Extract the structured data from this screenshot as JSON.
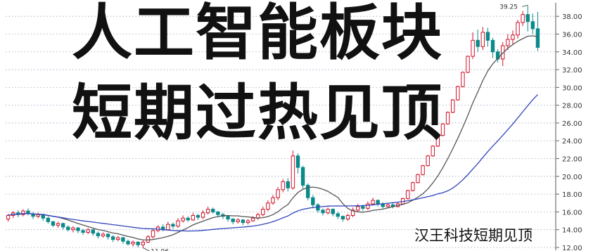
{
  "headline": {
    "line1": "人工智能板块",
    "line2": "短期过热见顶"
  },
  "caption": "汉王科技短期见顶",
  "colors": {
    "up": "#d0122a",
    "down": "#0a8a8a",
    "ma_short": "#555555",
    "ma_long": "#3344bb",
    "grid": "#9aa6c4"
  },
  "chart_data": {
    "type": "candlestick",
    "ylim": [
      12,
      39.2
    ],
    "yticks": [
      "12.00",
      "14.00",
      "16.00",
      "18.00",
      "20.00",
      "22.00",
      "24.00",
      "26.00",
      "28.00",
      "30.00",
      "32.00",
      "34.00",
      "36.00",
      "38.00"
    ],
    "annotations": {
      "low": "11.96",
      "high": "39.25"
    },
    "candles": [
      [
        15.2,
        15.6,
        14.9,
        15.8
      ],
      [
        15.6,
        15.9,
        15.3,
        16.1
      ],
      [
        15.9,
        15.7,
        15.4,
        16.2
      ],
      [
        15.7,
        16.1,
        15.5,
        16.3
      ],
      [
        16.1,
        15.8,
        15.6,
        16.4
      ],
      [
        15.8,
        15.5,
        15.2,
        16.0
      ],
      [
        15.5,
        15.7,
        15.3,
        15.9
      ],
      [
        15.7,
        15.3,
        15.0,
        15.8
      ],
      [
        15.3,
        14.9,
        14.7,
        15.5
      ],
      [
        14.9,
        14.5,
        14.3,
        15.0
      ],
      [
        14.5,
        14.7,
        14.2,
        14.9
      ],
      [
        14.7,
        14.3,
        14.0,
        14.8
      ],
      [
        14.3,
        14.0,
        13.8,
        14.5
      ],
      [
        14.0,
        14.2,
        13.7,
        14.4
      ],
      [
        14.2,
        13.9,
        13.6,
        14.3
      ],
      [
        13.9,
        13.7,
        13.4,
        14.1
      ],
      [
        13.7,
        14.0,
        13.5,
        14.2
      ],
      [
        14.0,
        13.6,
        13.3,
        14.1
      ],
      [
        13.6,
        13.3,
        13.0,
        13.8
      ],
      [
        13.3,
        13.5,
        13.1,
        13.7
      ],
      [
        13.5,
        13.2,
        12.9,
        13.6
      ],
      [
        13.2,
        12.9,
        12.6,
        13.4
      ],
      [
        12.9,
        13.1,
        12.7,
        13.3
      ],
      [
        13.1,
        12.7,
        12.4,
        13.2
      ],
      [
        12.7,
        12.4,
        12.2,
        12.9
      ],
      [
        12.4,
        12.6,
        12.1,
        12.8
      ],
      [
        12.6,
        12.3,
        12.0,
        12.7
      ],
      [
        12.3,
        12.6,
        11.96,
        12.8
      ],
      [
        12.6,
        13.2,
        12.5,
        13.4
      ],
      [
        13.2,
        13.9,
        13.0,
        14.1
      ],
      [
        13.9,
        14.3,
        13.7,
        14.5
      ],
      [
        14.3,
        14.0,
        13.8,
        14.6
      ],
      [
        14.0,
        14.6,
        13.9,
        14.9
      ],
      [
        14.6,
        14.4,
        14.1,
        14.8
      ],
      [
        14.4,
        15.0,
        14.2,
        15.3
      ],
      [
        15.0,
        15.3,
        14.8,
        15.6
      ],
      [
        15.3,
        15.1,
        14.9,
        15.5
      ],
      [
        15.1,
        15.6,
        15.0,
        15.9
      ],
      [
        15.6,
        15.4,
        15.1,
        15.8
      ],
      [
        15.4,
        15.9,
        15.2,
        16.2
      ],
      [
        15.9,
        16.3,
        15.7,
        16.6
      ],
      [
        16.3,
        16.0,
        15.8,
        16.5
      ],
      [
        16.0,
        15.7,
        15.4,
        16.1
      ],
      [
        15.7,
        15.5,
        15.2,
        15.9
      ],
      [
        15.5,
        15.2,
        14.9,
        15.6
      ],
      [
        15.2,
        14.9,
        14.6,
        15.3
      ],
      [
        14.9,
        15.1,
        14.7,
        15.3
      ],
      [
        15.1,
        14.8,
        14.5,
        15.2
      ],
      [
        14.8,
        15.0,
        14.6,
        15.2
      ],
      [
        15.0,
        15.3,
        14.9,
        15.5
      ],
      [
        15.3,
        15.7,
        15.1,
        15.9
      ],
      [
        15.7,
        16.3,
        15.5,
        16.6
      ],
      [
        16.3,
        17.0,
        16.1,
        17.3
      ],
      [
        17.0,
        17.6,
        16.8,
        17.9
      ],
      [
        17.6,
        18.5,
        17.3,
        18.8
      ],
      [
        18.5,
        19.4,
        18.2,
        19.7
      ],
      [
        19.4,
        18.7,
        18.3,
        19.8
      ],
      [
        18.7,
        22.3,
        18.5,
        22.9
      ],
      [
        22.3,
        21.0,
        20.3,
        22.6
      ],
      [
        21.0,
        19.0,
        18.6,
        21.2
      ],
      [
        19.0,
        17.6,
        17.3,
        19.2
      ],
      [
        17.6,
        16.8,
        16.4,
        17.9
      ],
      [
        16.8,
        16.2,
        15.9,
        17.0
      ],
      [
        16.2,
        15.9,
        15.6,
        16.4
      ],
      [
        15.9,
        16.3,
        15.7,
        16.5
      ],
      [
        16.3,
        15.8,
        15.5,
        16.4
      ],
      [
        15.8,
        15.5,
        15.2,
        16.0
      ],
      [
        15.5,
        15.2,
        14.9,
        15.6
      ],
      [
        15.2,
        15.6,
        15.0,
        15.8
      ],
      [
        15.6,
        16.2,
        15.4,
        16.5
      ],
      [
        16.2,
        16.6,
        16.0,
        16.9
      ],
      [
        16.6,
        16.4,
        16.1,
        16.8
      ],
      [
        16.4,
        16.9,
        16.2,
        17.2
      ],
      [
        16.9,
        17.3,
        16.7,
        17.6
      ],
      [
        17.3,
        16.9,
        16.6,
        17.4
      ],
      [
        16.9,
        16.6,
        16.4,
        17.1
      ],
      [
        16.6,
        16.8,
        16.5,
        17.0
      ],
      [
        16.8,
        16.6,
        16.4,
        17.0
      ],
      [
        16.6,
        16.9,
        16.5,
        17.1
      ],
      [
        16.9,
        17.5,
        16.8,
        17.6
      ],
      [
        17.5,
        18.4,
        17.4,
        18.5
      ],
      [
        18.4,
        19.3,
        18.3,
        19.4
      ],
      [
        19.3,
        20.2,
        19.2,
        20.3
      ],
      [
        20.2,
        21.2,
        20.1,
        21.3
      ],
      [
        21.2,
        22.3,
        21.1,
        22.4
      ],
      [
        22.3,
        23.4,
        22.2,
        23.5
      ],
      [
        23.4,
        24.6,
        23.3,
        24.7
      ],
      [
        24.6,
        25.9,
        24.5,
        26.0
      ],
      [
        25.9,
        27.2,
        25.8,
        27.3
      ],
      [
        27.2,
        28.6,
        27.1,
        28.7
      ],
      [
        28.6,
        30.1,
        28.5,
        30.2
      ],
      [
        30.1,
        31.7,
        30.0,
        31.8
      ],
      [
        31.7,
        33.5,
        31.6,
        33.6
      ],
      [
        33.5,
        35.3,
        33.2,
        36.2
      ],
      [
        35.3,
        34.6,
        34.0,
        36.5
      ],
      [
        34.6,
        36.2,
        34.2,
        36.8
      ],
      [
        36.2,
        35.3,
        34.6,
        36.7
      ],
      [
        35.3,
        34.0,
        33.3,
        35.6
      ],
      [
        34.0,
        33.2,
        32.8,
        34.3
      ],
      [
        33.2,
        34.7,
        32.4,
        35.1
      ],
      [
        34.7,
        35.4,
        34.2,
        36.0
      ],
      [
        35.4,
        35.9,
        34.8,
        36.4
      ],
      [
        35.9,
        37.3,
        35.5,
        37.6
      ],
      [
        37.3,
        38.2,
        36.9,
        38.6
      ],
      [
        38.2,
        37.4,
        36.3,
        39.25
      ],
      [
        37.4,
        36.6,
        36.0,
        38.3
      ],
      [
        36.6,
        34.5,
        34.1,
        38.5
      ]
    ]
  }
}
